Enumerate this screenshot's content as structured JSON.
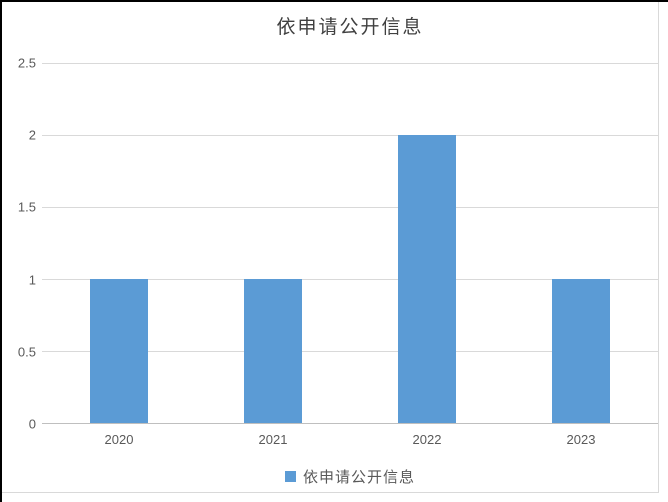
{
  "chart_data": {
    "type": "bar",
    "title": "依申请公开信息",
    "categories": [
      "2020",
      "2021",
      "2022",
      "2023"
    ],
    "series": [
      {
        "name": "依申请公开信息",
        "values": [
          1,
          1,
          2,
          1
        ]
      }
    ],
    "xlabel": "",
    "ylabel": "",
    "ylim": [
      0,
      2.5
    ],
    "ytick_step": 0.5,
    "grid": true,
    "legend_position": "bottom",
    "colors": {
      "bar": "#5B9BD5",
      "gridline": "#D9D9D9",
      "axis_line": "#BFBFBF",
      "tick_text": "#595959",
      "title_text": "#404040"
    }
  }
}
